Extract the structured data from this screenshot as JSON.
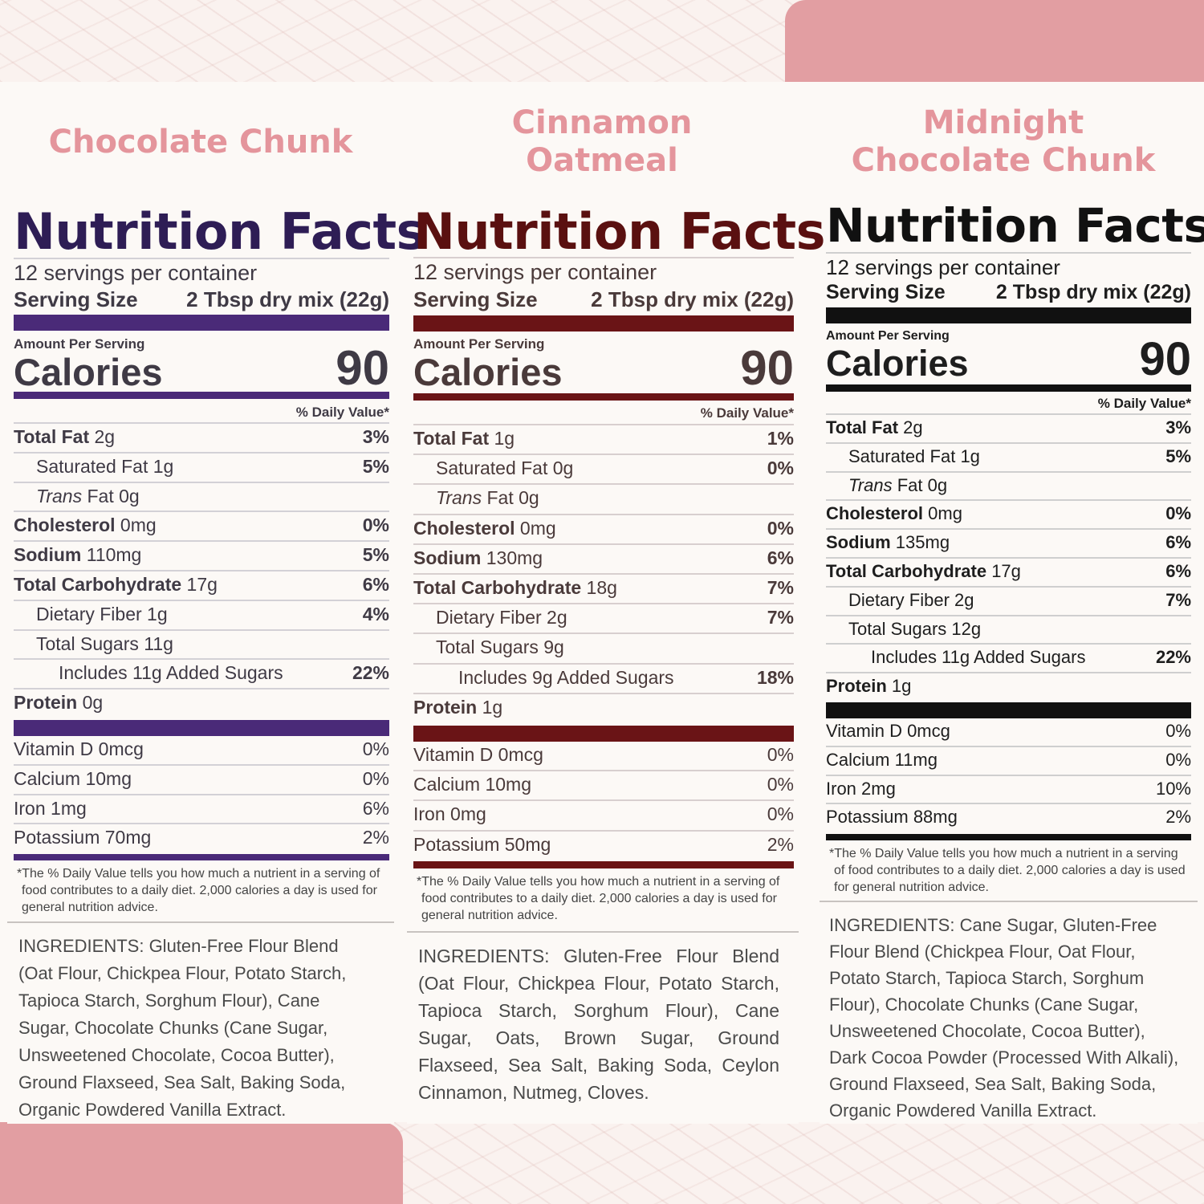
{
  "flavors": [
    {
      "name_lines": [
        "Chocolate Chunk"
      ]
    },
    {
      "name_lines": [
        "Cinnamon",
        "Oatmeal"
      ]
    },
    {
      "name_lines": [
        "Midnight",
        "Chocolate Chunk"
      ]
    }
  ],
  "panels": [
    {
      "title": "Nutrition Facts",
      "servings": "12 servings per container",
      "serving_size_label": "Serving Size",
      "serving_size_value": "2 Tbsp dry mix (22g)",
      "amount_per_serving": "Amount Per Serving",
      "calories_label": "Calories",
      "calories_value": "90",
      "dv_header": "% Daily Value*",
      "rows": [
        {
          "label": "Total Fat",
          "amount": "2g",
          "dv": "3%"
        },
        {
          "label": "Saturated Fat",
          "amount": "1g",
          "dv": "5%"
        },
        {
          "label": "Trans",
          "amount": "Fat 0g",
          "dv": ""
        },
        {
          "label": "Cholesterol",
          "amount": "0mg",
          "dv": "0%"
        },
        {
          "label": "Sodium",
          "amount": "110mg",
          "dv": "5%"
        },
        {
          "label": "Total Carbohydrate",
          "amount": "17g",
          "dv": "6%"
        },
        {
          "label": "Dietary Fiber",
          "amount": "1g",
          "dv": "4%"
        },
        {
          "label": "Total Sugars",
          "amount": "11g",
          "dv": ""
        },
        {
          "label": "Includes 11g Added Sugars",
          "amount": "",
          "dv": "22%"
        },
        {
          "label": "Protein",
          "amount": "0g",
          "dv": ""
        }
      ],
      "micros": [
        {
          "label": "Vitamin D 0mcg",
          "dv": "0%"
        },
        {
          "label": "Calcium 10mg",
          "dv": "0%"
        },
        {
          "label": "Iron 1mg",
          "dv": "6%"
        },
        {
          "label": "Potassium 70mg",
          "dv": "2%"
        }
      ],
      "footnote": "*The % Daily Value tells you how much a nutrient in a serving of food contributes to a daily diet. 2,000 calories a day is used for general nutrition advice.",
      "ingredients": "INGREDIENTS: Gluten-Free Flour Blend (Oat Flour, Chickpea Flour, Potato Starch, Tapioca Starch, Sorghum Flour), Cane Sugar, Chocolate Chunks (Cane Sugar, Unsweetened Chocolate, Cocoa Butter), Ground Flaxseed, Sea Salt, Baking Soda, Organic Powdered Vanilla Extract."
    },
    {
      "title": "Nutrition Facts",
      "servings": "12 servings per container",
      "serving_size_label": "Serving Size",
      "serving_size_value": "2 Tbsp dry mix (22g)",
      "amount_per_serving": "Amount Per Serving",
      "calories_label": "Calories",
      "calories_value": "90",
      "dv_header": "% Daily Value*",
      "rows": [
        {
          "label": "Total Fat",
          "amount": "1g",
          "dv": "1%"
        },
        {
          "label": "Saturated Fat",
          "amount": "0g",
          "dv": "0%"
        },
        {
          "label": "Trans",
          "amount": "Fat 0g",
          "dv": ""
        },
        {
          "label": "Cholesterol",
          "amount": "0mg",
          "dv": "0%"
        },
        {
          "label": "Sodium",
          "amount": "130mg",
          "dv": "6%"
        },
        {
          "label": "Total Carbohydrate",
          "amount": "18g",
          "dv": "7%"
        },
        {
          "label": "Dietary Fiber",
          "amount": "2g",
          "dv": "7%"
        },
        {
          "label": "Total Sugars",
          "amount": "9g",
          "dv": ""
        },
        {
          "label": "Includes 9g Added Sugars",
          "amount": "",
          "dv": "18%"
        },
        {
          "label": "Protein",
          "amount": "1g",
          "dv": ""
        }
      ],
      "micros": [
        {
          "label": "Vitamin D 0mcg",
          "dv": "0%"
        },
        {
          "label": "Calcium 10mg",
          "dv": "0%"
        },
        {
          "label": "Iron 0mg",
          "dv": "0%"
        },
        {
          "label": "Potassium 50mg",
          "dv": "2%"
        }
      ],
      "footnote": "*The % Daily Value tells you how much a nutrient in a serving of food contributes to a daily diet. 2,000 calories a day is used for general nutrition advice.",
      "ingredients": "INGREDIENTS: Gluten-Free Flour Blend (Oat Flour, Chickpea Flour, Potato Starch, Tapioca Starch, Sorghum Flour), Cane Sugar, Oats, Brown Sugar, Ground Flaxseed, Sea Salt, Baking Soda, Ceylon Cinnamon, Nutmeg, Cloves."
    },
    {
      "title": "Nutrition Facts",
      "servings": "12 servings per container",
      "serving_size_label": "Serving Size",
      "serving_size_value": "2 Tbsp dry mix (22g)",
      "amount_per_serving": "Amount Per Serving",
      "calories_label": "Calories",
      "calories_value": "90",
      "dv_header": "% Daily Value*",
      "rows": [
        {
          "label": "Total Fat",
          "amount": "2g",
          "dv": "3%"
        },
        {
          "label": "Saturated Fat",
          "amount": "1g",
          "dv": "5%"
        },
        {
          "label": "Trans",
          "amount": "Fat 0g",
          "dv": ""
        },
        {
          "label": "Cholesterol",
          "amount": "0mg",
          "dv": "0%"
        },
        {
          "label": "Sodium",
          "amount": "135mg",
          "dv": "6%"
        },
        {
          "label": "Total Carbohydrate",
          "amount": "17g",
          "dv": "6%"
        },
        {
          "label": "Dietary Fiber",
          "amount": "2g",
          "dv": "7%"
        },
        {
          "label": "Total Sugars",
          "amount": "12g",
          "dv": ""
        },
        {
          "label": "Includes 11g Added Sugars",
          "amount": "",
          "dv": "22%"
        },
        {
          "label": "Protein",
          "amount": "1g",
          "dv": ""
        }
      ],
      "micros": [
        {
          "label": "Vitamin D 0mcg",
          "dv": "0%"
        },
        {
          "label": "Calcium 11mg",
          "dv": "0%"
        },
        {
          "label": "Iron 2mg",
          "dv": "10%"
        },
        {
          "label": "Potassium 88mg",
          "dv": "2%"
        }
      ],
      "footnote": "*The % Daily Value tells you how much a nutrient in a serving of food contributes to a daily diet. 2,000 calories a day is used for general nutrition advice.",
      "ingredients": "INGREDIENTS: Cane Sugar, Gluten-Free Flour Blend (Chickpea Flour, Oat Flour, Potato Starch, Tapioca Starch, Sorghum Flour), Chocolate Chunks (Cane Sugar, Unsweetened Chocolate, Cocoa Butter), Dark Cocoa Powder (Processed With Alkali), Ground Flaxseed, Sea Salt, Baking Soda, Organic Powdered Vanilla Extract."
    }
  ]
}
